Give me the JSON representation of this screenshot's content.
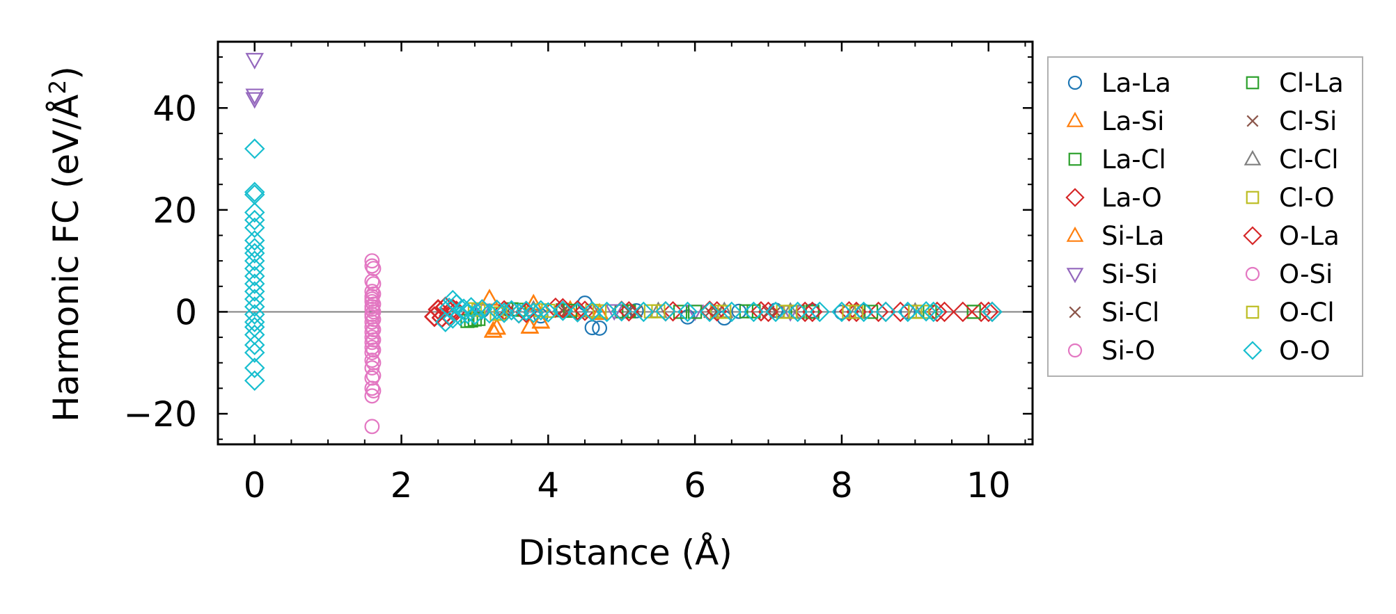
{
  "chart_data": {
    "type": "scatter",
    "xlabel": "Distance (Å)",
    "ylabel": "Harmonic FC (eV/Å",
    "ylabel_sup": "2",
    "ylabel_end": ")",
    "xlim": [
      -0.5,
      10.6
    ],
    "ylim": [
      -26,
      53
    ],
    "x_ticks": [
      0,
      2,
      4,
      6,
      8,
      10
    ],
    "x_tick_labels": [
      "0",
      "2",
      "4",
      "6",
      "8",
      "10"
    ],
    "y_ticks": [
      -20,
      0,
      20,
      40
    ],
    "y_tick_labels": [
      "−20",
      "0",
      "20",
      "40"
    ],
    "zero_line": true,
    "grid": false,
    "legend_position": "outside-right",
    "series": [
      {
        "name": "La-La",
        "marker": "circle",
        "color": "#1f77b4",
        "x": [
          3.1,
          3.9,
          4.5,
          4.6,
          4.7,
          5.2,
          5.9,
          6.4,
          6.6,
          7.1,
          7.6,
          8.0,
          8.3,
          8.9
        ],
        "y": [
          0.3,
          -0.8,
          1.7,
          -3.1,
          -3.2,
          0.2,
          -1.0,
          -1.2,
          0.1,
          0.3,
          0.2,
          -0.1,
          0.1,
          0.0
        ]
      },
      {
        "name": "La-Si",
        "marker": "triangle-up",
        "color": "#ff7f0e",
        "x": [
          3.2,
          3.25,
          3.3,
          3.75,
          3.8,
          3.9,
          4.3,
          4.7
        ],
        "y": [
          2.6,
          -3.8,
          -3.2,
          -3.0,
          1.6,
          -2.0,
          0.4,
          -0.3
        ]
      },
      {
        "name": "La-Cl",
        "marker": "square",
        "color": "#2ca02c",
        "x": [
          2.9,
          3.0,
          3.5,
          4.2,
          5.0,
          5.8,
          6.7,
          7.4,
          8.2,
          9.0,
          9.8
        ],
        "y": [
          -1.8,
          -1.5,
          0.5,
          0.3,
          0.1,
          0.0,
          0.1,
          0.0,
          0.0,
          0.0,
          0.0
        ]
      },
      {
        "name": "La-O",
        "marker": "diamond",
        "color": "#d62728",
        "x": [
          2.45,
          2.5,
          2.55,
          2.6,
          2.65,
          2.7,
          2.75,
          3.3,
          3.6,
          4.1,
          4.4,
          5.0,
          5.6,
          6.2,
          6.9,
          7.5,
          8.1,
          8.5,
          8.8,
          9.4,
          9.9,
          10.0
        ],
        "y": [
          -1.0,
          0.5,
          -1.2,
          1.0,
          -0.8,
          0.6,
          0.2,
          0.4,
          -0.3,
          0.8,
          0.3,
          0.2,
          0.1,
          0.2,
          0.1,
          0.0,
          0.1,
          0.0,
          0.0,
          0.0,
          0.0,
          0.0
        ]
      },
      {
        "name": "Si-La",
        "marker": "triangle-up",
        "color": "#ff7f0e",
        "x": [
          3.2,
          3.25,
          3.3,
          3.75,
          3.8,
          3.9,
          4.3,
          4.7
        ],
        "y": [
          2.5,
          -3.7,
          -3.1,
          -2.9,
          1.5,
          -1.9,
          0.3,
          -0.2
        ]
      },
      {
        "name": "Si-Si",
        "marker": "triangle-down",
        "color": "#9467bd",
        "x": [
          0.0,
          0.0,
          0.0,
          3.1,
          4.9,
          6.0,
          7.3
        ],
        "y": [
          49.5,
          42.5,
          41.8,
          0.3,
          0.2,
          0.1,
          0.0
        ]
      },
      {
        "name": "Si-Cl",
        "marker": "x",
        "color": "#8c564b",
        "x": [
          3.4,
          4.2,
          5.1,
          6.2,
          7.0
        ],
        "y": [
          0.3,
          0.2,
          0.1,
          0.0,
          0.0
        ]
      },
      {
        "name": "Si-O",
        "marker": "circle",
        "color": "#e377c2",
        "x": [
          1.6,
          1.6,
          1.6,
          1.6,
          1.6,
          1.6,
          1.6,
          1.6,
          1.6,
          1.6,
          1.6,
          1.6,
          1.6,
          1.6,
          1.6,
          1.6,
          1.6,
          1.6,
          1.6,
          1.6,
          1.6,
          1.6,
          1.6,
          1.6
        ],
        "y": [
          10.0,
          9.0,
          6.0,
          4.0,
          3.0,
          2.5,
          2.0,
          1.0,
          0.5,
          -0.5,
          -1.0,
          -2.0,
          -3.0,
          -4.0,
          -5.0,
          -6.0,
          -7.0,
          -8.0,
          -9.5,
          -11.0,
          -13.0,
          -15.0,
          -16.5,
          -22.5
        ]
      },
      {
        "name": "Cl-La",
        "marker": "square",
        "color": "#2ca02c",
        "x": [
          2.95,
          3.05,
          3.6,
          4.3,
          5.1,
          6.0,
          6.8,
          7.6,
          8.4,
          9.2,
          9.8
        ],
        "y": [
          -1.7,
          -1.4,
          0.4,
          0.2,
          0.1,
          0.0,
          0.1,
          0.0,
          0.0,
          0.0,
          0.0
        ]
      },
      {
        "name": "Cl-Si",
        "marker": "x",
        "color": "#8c564b",
        "x": [
          3.45,
          4.25,
          5.2,
          6.3,
          7.1
        ],
        "y": [
          0.2,
          0.1,
          0.1,
          0.0,
          0.0
        ]
      },
      {
        "name": "Cl-Cl",
        "marker": "triangle-up",
        "color": "#7f7f7f",
        "x": [
          3.8,
          4.6,
          5.5,
          6.4,
          7.3,
          8.2,
          9.0
        ],
        "y": [
          0.4,
          0.2,
          0.1,
          0.1,
          0.0,
          0.0,
          0.0
        ]
      },
      {
        "name": "Cl-O",
        "marker": "square",
        "color": "#bcbd22",
        "x": [
          3.0,
          3.3,
          3.9,
          4.6,
          5.4,
          6.3,
          7.2,
          8.1,
          9.0
        ],
        "y": [
          0.5,
          -0.4,
          0.3,
          0.2,
          0.1,
          0.0,
          0.0,
          0.0,
          0.0
        ]
      },
      {
        "name": "O-La",
        "marker": "diamond",
        "color": "#d62728",
        "x": [
          2.45,
          2.5,
          2.55,
          2.6,
          2.65,
          2.7,
          3.4,
          3.7,
          4.2,
          4.5,
          5.1,
          5.7,
          6.3,
          7.0,
          7.6,
          8.2,
          8.6,
          9.3,
          9.65,
          10.05
        ],
        "y": [
          -0.9,
          0.4,
          -1.1,
          0.9,
          -0.7,
          0.5,
          0.3,
          -0.2,
          0.7,
          0.2,
          0.1,
          0.1,
          0.1,
          0.0,
          0.0,
          0.0,
          0.0,
          0.0,
          0.0,
          0.0
        ]
      },
      {
        "name": "O-Si",
        "marker": "circle",
        "color": "#e377c2",
        "x": [
          1.62,
          1.62,
          1.62,
          1.62,
          1.62,
          1.62,
          1.62,
          1.62,
          1.62,
          1.62,
          1.62,
          1.62
        ],
        "y": [
          8.5,
          5.5,
          3.5,
          1.5,
          0.0,
          -1.5,
          -3.5,
          -5.5,
          -7.5,
          -10.0,
          -12.5,
          -15.5
        ]
      },
      {
        "name": "O-Cl",
        "marker": "square",
        "color": "#bcbd22",
        "x": [
          3.05,
          3.35,
          4.0,
          4.7,
          5.5,
          6.4,
          7.3,
          8.2,
          9.1
        ],
        "y": [
          0.4,
          -0.3,
          0.2,
          0.1,
          0.1,
          0.0,
          0.0,
          0.0,
          0.0
        ]
      },
      {
        "name": "O-O",
        "marker": "diamond",
        "color": "#17becf",
        "x": [
          0.0,
          0.0,
          0.0,
          0.0,
          0.0,
          0.0,
          0.0,
          0.0,
          0.0,
          0.0,
          0.0,
          0.0,
          0.0,
          0.0,
          0.0,
          0.0,
          0.0,
          0.0,
          0.0,
          0.0,
          0.0,
          0.0,
          0.0,
          0.0,
          2.6,
          2.65,
          2.7,
          2.7,
          2.75,
          2.8,
          2.85,
          2.9,
          2.95,
          3.0,
          3.1,
          3.2,
          3.3,
          3.4,
          3.5,
          3.6,
          3.7,
          3.8,
          3.9,
          4.0,
          4.2,
          4.4,
          4.6,
          4.8,
          5.0,
          5.3,
          5.6,
          5.9,
          6.2,
          6.5,
          6.8,
          7.1,
          7.4,
          7.7,
          8.0,
          8.3,
          8.6,
          8.9,
          9.15,
          9.25,
          10.05
        ],
        "y": [
          32.0,
          23.5,
          23.0,
          19.5,
          18.0,
          16.5,
          14.0,
          12.5,
          11.5,
          10.0,
          8.5,
          7.0,
          5.5,
          4.0,
          2.5,
          1.0,
          -0.5,
          -2.0,
          -3.0,
          -4.5,
          -6.5,
          -8.0,
          -11.0,
          -13.5,
          -2.0,
          0.8,
          2.3,
          -1.3,
          1.5,
          -0.8,
          0.6,
          -0.4,
          0.9,
          -0.6,
          0.5,
          -0.3,
          0.4,
          -0.2,
          0.3,
          -0.3,
          0.2,
          -0.2,
          0.3,
          -0.1,
          0.2,
          -0.1,
          0.1,
          0.0,
          0.1,
          0.0,
          0.1,
          0.0,
          0.0,
          0.0,
          0.0,
          0.0,
          0.0,
          0.0,
          0.0,
          0.0,
          0.0,
          0.0,
          0.1,
          0.0,
          0.0
        ]
      }
    ]
  }
}
